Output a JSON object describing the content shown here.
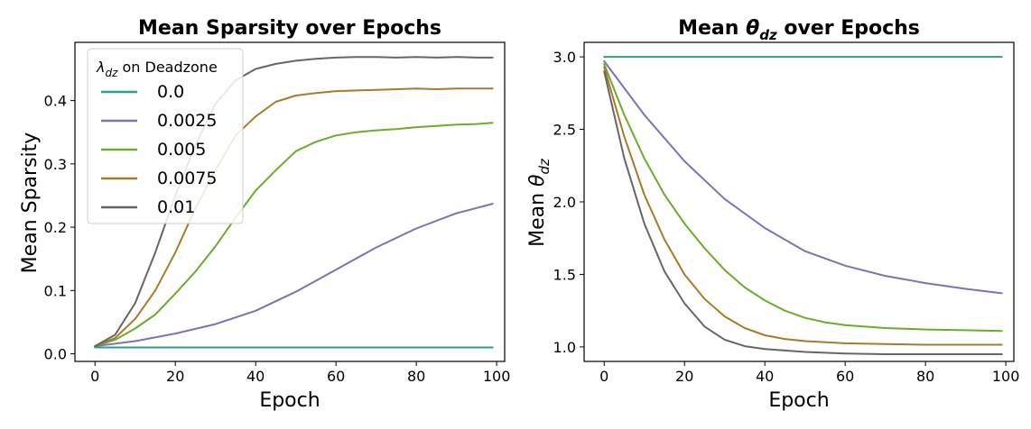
{
  "chart_data": [
    {
      "type": "line",
      "title": "Mean Sparsity over Epochs",
      "xlabel": "Epoch",
      "ylabel": "Mean Sparsity",
      "xlim": [
        -5,
        102
      ],
      "ylim": [
        -0.012,
        0.492
      ],
      "xticks": [
        0,
        20,
        40,
        60,
        80,
        100
      ],
      "xtick_labels": [
        "0",
        "20",
        "40",
        "60",
        "80",
        "100"
      ],
      "yticks": [
        0.0,
        0.1,
        0.2,
        0.3,
        0.4
      ],
      "ytick_labels": [
        "0.0",
        "0.1",
        "0.2",
        "0.3",
        "0.4"
      ],
      "legend": {
        "title_symbol": "λ",
        "title_subscript": "dz",
        "title_suffix": " on Deadzone",
        "placement": "upper-left"
      },
      "series": [
        {
          "name": "0.0",
          "color": "#2ca089",
          "x": [
            0,
            10,
            20,
            30,
            40,
            50,
            60,
            70,
            80,
            90,
            99
          ],
          "y": [
            0.01,
            0.01,
            0.01,
            0.01,
            0.01,
            0.01,
            0.01,
            0.01,
            0.01,
            0.01,
            0.01
          ]
        },
        {
          "name": "0.0025",
          "color": "#7b72b8",
          "x": [
            0,
            10,
            20,
            30,
            40,
            50,
            60,
            70,
            80,
            90,
            99
          ],
          "y": [
            0.012,
            0.02,
            0.032,
            0.047,
            0.068,
            0.098,
            0.133,
            0.168,
            0.198,
            0.222,
            0.237
          ]
        },
        {
          "name": "0.005",
          "color": "#6aad2c",
          "x": [
            0,
            5,
            10,
            15,
            20,
            25,
            30,
            35,
            40,
            45,
            50,
            55,
            60,
            65,
            70,
            75,
            80,
            85,
            90,
            95,
            99
          ],
          "y": [
            0.012,
            0.022,
            0.04,
            0.062,
            0.095,
            0.13,
            0.17,
            0.215,
            0.258,
            0.29,
            0.32,
            0.335,
            0.345,
            0.35,
            0.353,
            0.355,
            0.358,
            0.36,
            0.362,
            0.363,
            0.365
          ]
        },
        {
          "name": "0.0075",
          "color": "#a87a2a",
          "x": [
            0,
            5,
            10,
            15,
            20,
            25,
            30,
            35,
            40,
            45,
            50,
            55,
            60,
            65,
            70,
            75,
            80,
            85,
            90,
            95,
            99
          ],
          "y": [
            0.012,
            0.025,
            0.055,
            0.1,
            0.16,
            0.23,
            0.29,
            0.345,
            0.375,
            0.398,
            0.408,
            0.412,
            0.415,
            0.416,
            0.417,
            0.418,
            0.419,
            0.418,
            0.419,
            0.419,
            0.419
          ]
        },
        {
          "name": "0.01",
          "color": "#666666",
          "x": [
            0,
            5,
            10,
            15,
            20,
            25,
            30,
            35,
            40,
            45,
            50,
            55,
            60,
            65,
            70,
            75,
            80,
            85,
            90,
            95,
            99
          ],
          "y": [
            0.012,
            0.03,
            0.08,
            0.16,
            0.25,
            0.33,
            0.395,
            0.432,
            0.45,
            0.458,
            0.463,
            0.466,
            0.468,
            0.469,
            0.469,
            0.468,
            0.469,
            0.468,
            0.469,
            0.468,
            0.468
          ]
        }
      ]
    },
    {
      "type": "line",
      "title_prefix": "Mean ",
      "title_symbol": "θ",
      "title_subscript": "dz",
      "title_suffix": " over Epochs",
      "xlabel": "Epoch",
      "ylabel_prefix": "Mean ",
      "ylabel_symbol": "θ",
      "ylabel_subscript": "dz",
      "xlim": [
        -5,
        102
      ],
      "ylim": [
        0.9,
        3.1
      ],
      "xticks": [
        0,
        20,
        40,
        60,
        80,
        100
      ],
      "xtick_labels": [
        "0",
        "20",
        "40",
        "60",
        "80",
        "100"
      ],
      "yticks": [
        1.0,
        1.5,
        2.0,
        2.5,
        3.0
      ],
      "ytick_labels": [
        "1.0",
        "1.5",
        "2.0",
        "2.5",
        "3.0"
      ],
      "series": [
        {
          "name": "0.0",
          "color": "#2ca089",
          "x": [
            0,
            20,
            40,
            60,
            80,
            99
          ],
          "y": [
            3.0,
            3.0,
            3.0,
            3.0,
            3.0,
            3.0
          ]
        },
        {
          "name": "0.0025",
          "color": "#7b72b8",
          "x": [
            0,
            10,
            20,
            30,
            40,
            50,
            60,
            70,
            80,
            90,
            99
          ],
          "y": [
            2.97,
            2.6,
            2.28,
            2.02,
            1.82,
            1.66,
            1.56,
            1.49,
            1.44,
            1.4,
            1.37
          ]
        },
        {
          "name": "0.005",
          "color": "#6aad2c",
          "x": [
            0,
            5,
            10,
            15,
            20,
            25,
            30,
            35,
            40,
            45,
            50,
            55,
            60,
            70,
            80,
            90,
            99
          ],
          "y": [
            2.95,
            2.6,
            2.3,
            2.05,
            1.85,
            1.68,
            1.53,
            1.41,
            1.32,
            1.25,
            1.2,
            1.17,
            1.15,
            1.13,
            1.12,
            1.115,
            1.11
          ]
        },
        {
          "name": "0.0075",
          "color": "#a87a2a",
          "x": [
            0,
            5,
            10,
            15,
            20,
            25,
            30,
            35,
            40,
            45,
            50,
            60,
            70,
            80,
            90,
            99
          ],
          "y": [
            2.93,
            2.45,
            2.05,
            1.74,
            1.5,
            1.33,
            1.21,
            1.13,
            1.08,
            1.055,
            1.04,
            1.025,
            1.02,
            1.015,
            1.015,
            1.015
          ]
        },
        {
          "name": "0.01",
          "color": "#666666",
          "x": [
            0,
            5,
            10,
            15,
            20,
            25,
            30,
            35,
            40,
            45,
            50,
            60,
            70,
            80,
            90,
            99
          ],
          "y": [
            2.9,
            2.3,
            1.85,
            1.52,
            1.3,
            1.14,
            1.05,
            1.005,
            0.985,
            0.975,
            0.965,
            0.955,
            0.95,
            0.95,
            0.95,
            0.95
          ]
        }
      ]
    }
  ]
}
